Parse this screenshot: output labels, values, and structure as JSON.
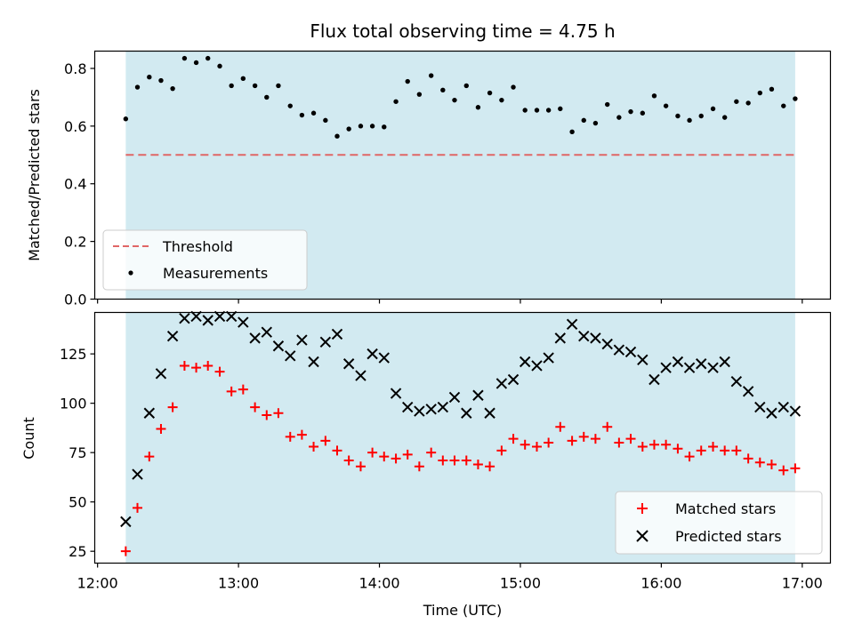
{
  "chart_data": {
    "title": "Flux total observing time = 4.75 h",
    "xlabel": "Time (UTC)",
    "x_tick_labels": [
      "12:00",
      "13:00",
      "14:00",
      "15:00",
      "16:00",
      "17:00"
    ],
    "x_ticks_hours": [
      12,
      13,
      14,
      15,
      16,
      17
    ],
    "xlim_hours": [
      11.98,
      17.2
    ],
    "observing_window_hours": [
      12.2,
      16.95
    ],
    "shade_color": "#add8e6",
    "panels": [
      {
        "type": "scatter",
        "ylabel": "Matched/Predicted stars",
        "ylim": [
          0,
          0.86
        ],
        "y_ticks": [
          0.0,
          0.2,
          0.4,
          0.6,
          0.8
        ],
        "y_tick_labels": [
          "0.0",
          "0.2",
          "0.4",
          "0.6",
          "0.8"
        ],
        "legend_position": "lower-left",
        "threshold": {
          "name": "Threshold",
          "value": 0.5,
          "color": "#e06666",
          "style": "dashed"
        },
        "series": [
          {
            "name": "Measurements",
            "color": "#000000",
            "marker": "dot",
            "x": [
              12.2,
              12.283,
              12.367,
              12.45,
              12.533,
              12.617,
              12.7,
              12.783,
              12.867,
              12.95,
              13.033,
              13.117,
              13.2,
              13.283,
              13.367,
              13.45,
              13.533,
              13.617,
              13.7,
              13.783,
              13.867,
              13.95,
              14.033,
              14.117,
              14.2,
              14.283,
              14.367,
              14.45,
              14.533,
              14.617,
              14.7,
              14.783,
              14.867,
              14.95,
              15.033,
              15.117,
              15.2,
              15.283,
              15.367,
              15.45,
              15.533,
              15.617,
              15.7,
              15.783,
              15.867,
              15.95,
              16.033,
              16.117,
              16.2,
              16.283,
              16.367,
              16.45,
              16.533,
              16.617,
              16.7,
              16.783,
              16.867,
              16.95
            ],
            "y": [
              0.625,
              0.735,
              0.77,
              0.758,
              0.73,
              0.835,
              0.82,
              0.835,
              0.808,
              0.74,
              0.765,
              0.74,
              0.7,
              0.74,
              0.67,
              0.638,
              0.645,
              0.62,
              0.565,
              0.59,
              0.6,
              0.6,
              0.597,
              0.685,
              0.755,
              0.71,
              0.775,
              0.725,
              0.69,
              0.74,
              0.665,
              0.715,
              0.69,
              0.735,
              0.655,
              0.655,
              0.655,
              0.66,
              0.58,
              0.62,
              0.61,
              0.675,
              0.63,
              0.65,
              0.645,
              0.705,
              0.67,
              0.635,
              0.62,
              0.635,
              0.66,
              0.63,
              0.685,
              0.68,
              0.715,
              0.728,
              0.67,
              0.695
            ]
          }
        ]
      },
      {
        "type": "scatter",
        "ylabel": "Count",
        "ylim": [
          19,
          146
        ],
        "y_ticks": [
          25,
          50,
          75,
          100,
          125
        ],
        "y_tick_labels": [
          "25",
          "50",
          "75",
          "100",
          "125"
        ],
        "legend_position": "lower-right",
        "series": [
          {
            "name": "Matched stars",
            "color": "#ff0000",
            "marker": "plus",
            "x": [
              12.2,
              12.283,
              12.367,
              12.45,
              12.533,
              12.617,
              12.7,
              12.783,
              12.867,
              12.95,
              13.033,
              13.117,
              13.2,
              13.283,
              13.367,
              13.45,
              13.533,
              13.617,
              13.7,
              13.783,
              13.867,
              13.95,
              14.033,
              14.117,
              14.2,
              14.283,
              14.367,
              14.45,
              14.533,
              14.617,
              14.7,
              14.783,
              14.867,
              14.95,
              15.033,
              15.117,
              15.2,
              15.283,
              15.367,
              15.45,
              15.533,
              15.617,
              15.7,
              15.783,
              15.867,
              15.95,
              16.033,
              16.117,
              16.2,
              16.283,
              16.367,
              16.45,
              16.533,
              16.617,
              16.7,
              16.783,
              16.867,
              16.95
            ],
            "y": [
              25,
              47,
              73,
              87,
              98,
              119,
              118,
              119,
              116,
              106,
              107,
              98,
              94,
              95,
              83,
              84,
              78,
              81,
              76,
              71,
              68,
              75,
              73,
              72,
              74,
              68,
              75,
              71,
              71,
              71,
              69,
              68,
              76,
              82,
              79,
              78,
              80,
              88,
              81,
              83,
              82,
              88,
              80,
              82,
              78,
              79,
              79,
              77,
              73,
              76,
              78,
              76,
              76,
              72,
              70,
              69,
              66,
              67
            ]
          },
          {
            "name": "Predicted stars",
            "color": "#000000",
            "marker": "x",
            "x": [
              12.2,
              12.283,
              12.367,
              12.45,
              12.533,
              12.617,
              12.7,
              12.783,
              12.867,
              12.95,
              13.033,
              13.117,
              13.2,
              13.283,
              13.367,
              13.45,
              13.533,
              13.617,
              13.7,
              13.783,
              13.867,
              13.95,
              14.033,
              14.117,
              14.2,
              14.283,
              14.367,
              14.45,
              14.533,
              14.617,
              14.7,
              14.783,
              14.867,
              14.95,
              15.033,
              15.117,
              15.2,
              15.283,
              15.367,
              15.45,
              15.533,
              15.617,
              15.7,
              15.783,
              15.867,
              15.95,
              16.033,
              16.117,
              16.2,
              16.283,
              16.367,
              16.45,
              16.533,
              16.617,
              16.7,
              16.783,
              16.867,
              16.95
            ],
            "y": [
              40,
              64,
              95,
              115,
              134,
              143,
              144,
              142,
              144,
              144,
              141,
              133,
              136,
              129,
              124,
              132,
              121,
              131,
              135,
              120,
              114,
              125,
              123,
              105,
              98,
              96,
              97,
              98,
              103,
              95,
              104,
              95,
              110,
              112,
              121,
              119,
              123,
              133,
              140,
              134,
              133,
              130,
              127,
              126,
              122,
              112,
              118,
              121,
              118,
              120,
              118,
              121,
              111,
              106,
              98,
              95,
              98,
              96
            ]
          }
        ]
      }
    ]
  }
}
